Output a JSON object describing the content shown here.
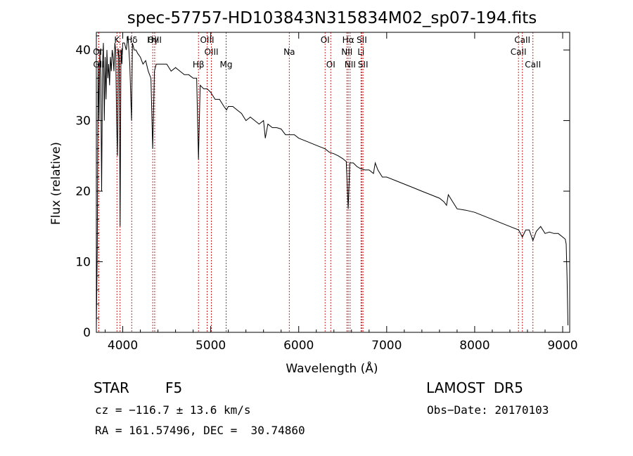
{
  "chart_data": {
    "type": "line",
    "title": "spec-57757-HD103843N315834M02_sp07-194.fits",
    "xlabel": "Wavelength (Å)",
    "ylabel": "Flux (relative)",
    "xlim": [
      3700,
      9080
    ],
    "ylim": [
      0,
      42.5
    ],
    "xticks": [
      4000,
      5000,
      6000,
      7000,
      8000,
      9000
    ],
    "yticks": [
      0,
      10,
      20,
      30,
      40
    ],
    "series": [
      {
        "x": [
          3700,
          3710,
          3720,
          3730,
          3740,
          3750,
          3760,
          3770,
          3780,
          3790,
          3800,
          3810,
          3820,
          3830,
          3840,
          3850,
          3860,
          3870,
          3880,
          3890,
          3900,
          3910,
          3920,
          3930,
          3940,
          3950,
          3960,
          3970,
          3980,
          3990,
          4000,
          4020,
          4040,
          4060,
          4080,
          4100,
          4110,
          4130,
          4150,
          4170,
          4200,
          4230,
          4260,
          4290,
          4320,
          4340,
          4360,
          4380,
          4420,
          4460,
          4500,
          4550,
          4600,
          4650,
          4700,
          4750,
          4800,
          4840,
          4861,
          4880,
          4920,
          4960,
          5000,
          5050,
          5100,
          5150,
          5180,
          5200,
          5250,
          5300,
          5350,
          5400,
          5450,
          5500,
          5550,
          5600,
          5620,
          5650,
          5700,
          5750,
          5800,
          5850,
          5890,
          5950,
          6000,
          6100,
          6200,
          6300,
          6350,
          6400,
          6450,
          6500,
          6540,
          6563,
          6580,
          6620,
          6660,
          6700,
          6750,
          6800,
          6850,
          6870,
          6900,
          6950,
          7000,
          7100,
          7200,
          7300,
          7400,
          7500,
          7600,
          7650,
          7680,
          7700,
          7750,
          7800,
          7900,
          8000,
          8100,
          8200,
          8300,
          8400,
          8500,
          8542,
          8580,
          8620,
          8662,
          8700,
          8750,
          8800,
          8850,
          8900,
          8950,
          9000,
          9030,
          9040,
          9050,
          9060
        ],
        "y": [
          0.5,
          12,
          38,
          30,
          40,
          36,
          20,
          38,
          41,
          30,
          39,
          33,
          40,
          36,
          38,
          35,
          39,
          37,
          40,
          39,
          37,
          41,
          40,
          30,
          25,
          40,
          39,
          15,
          40,
          38,
          41,
          41,
          40,
          42,
          38,
          30,
          41,
          40,
          40,
          39.5,
          39,
          38,
          38.5,
          37,
          36,
          26,
          37,
          38,
          38,
          38,
          38,
          37,
          37.5,
          37,
          36.5,
          36.5,
          36,
          36,
          24.5,
          35,
          34.5,
          34.5,
          34,
          33,
          33,
          32,
          31.5,
          32,
          32,
          31.5,
          31,
          30,
          30.5,
          30,
          29.5,
          30,
          27.5,
          29.5,
          29,
          29,
          28.8,
          28,
          28,
          28,
          27.5,
          27,
          26.5,
          26,
          25.5,
          25.3,
          25,
          24.6,
          24.2,
          17.5,
          24,
          24,
          23.5,
          23.2,
          23,
          23,
          22.5,
          24,
          23,
          22,
          22,
          21.5,
          21,
          20.5,
          20,
          19.5,
          19,
          18.5,
          18,
          19.5,
          18.5,
          17.5,
          17.3,
          17,
          16.5,
          16,
          15.5,
          15,
          14.5,
          13.5,
          14.5,
          14.5,
          13,
          14.3,
          15,
          14,
          14.2,
          14,
          14,
          13.5,
          13.2,
          12.5,
          8,
          1
        ]
      }
    ],
    "lines": [
      {
        "name": "Hδ",
        "wl": 4102,
        "row": 1
      },
      {
        "name": "K",
        "wl": 3934,
        "row": 1
      },
      {
        "name": "H",
        "wl": 3969,
        "row": 2
      },
      {
        "name": "OII",
        "wl": 3727,
        "row": 2
      },
      {
        "name": "Oll",
        "wl": 3727,
        "row": 3
      },
      {
        "name": "Hγ",
        "wl": 4341,
        "row": 1
      },
      {
        "name": "OIII",
        "wl": 4363,
        "row": 1
      },
      {
        "name": "Hβ",
        "wl": 4861,
        "row": 3
      },
      {
        "name": "OIII",
        "wl": 4959,
        "row": 1
      },
      {
        "name": "OIII",
        "wl": 5007,
        "row": 2
      },
      {
        "name": "Mg",
        "wl": 5175,
        "row": 3
      },
      {
        "name": "Na",
        "wl": 5893,
        "row": 2
      },
      {
        "name": "OI",
        "wl": 6300,
        "row": 1
      },
      {
        "name": "OI",
        "wl": 6364,
        "row": 3
      },
      {
        "name": "Hα",
        "wl": 6563,
        "row": 1
      },
      {
        "name": "NII",
        "wl": 6548,
        "row": 2
      },
      {
        "name": "NII",
        "wl": 6584,
        "row": 3
      },
      {
        "name": "SII",
        "wl": 6717,
        "row": 1
      },
      {
        "name": "Li",
        "wl": 6708,
        "row": 2
      },
      {
        "name": "SII",
        "wl": 6731,
        "row": 3
      },
      {
        "name": "CaII",
        "wl": 8498,
        "row": 2
      },
      {
        "name": "CaII",
        "wl": 8542,
        "row": 1
      },
      {
        "name": "CaII",
        "wl": 8662,
        "row": 3
      }
    ]
  },
  "info": {
    "class_label": "STAR",
    "subclass": "F5",
    "survey": "LAMOST  DR5",
    "cz": "cz = −116.7 ± 13.6 km/s",
    "obs_date": "Obs−Date: 20170103",
    "coords": "RA = 161.57496, DEC =  30.74860"
  },
  "colors": {
    "line_marker": "#cc2222",
    "spectrum": "#000000",
    "axes": "#000000"
  }
}
